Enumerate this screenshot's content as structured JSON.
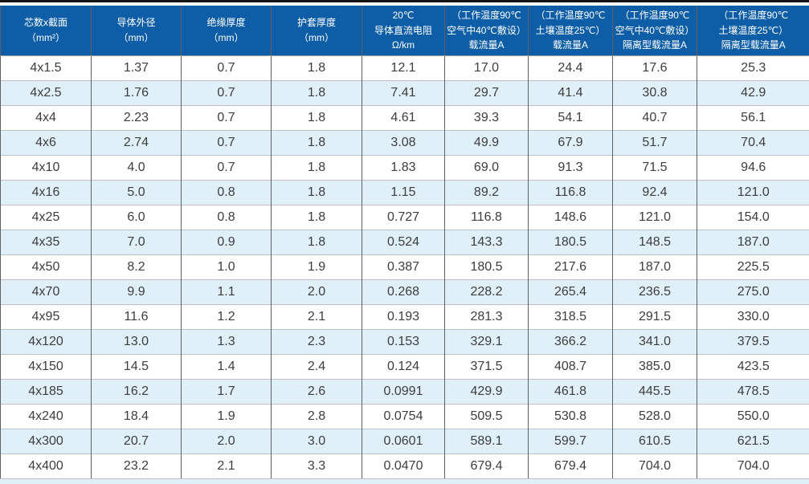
{
  "table": {
    "columns": [
      {
        "label": "芯数x截面\n（mm²）"
      },
      {
        "label": "导体外径\n（mm）"
      },
      {
        "label": "绝缘厚度\n（mm）"
      },
      {
        "label": "护套厚度\n（mm）"
      },
      {
        "label": "20℃\n导体直流电阻\nΩ/km"
      },
      {
        "label": "（工作温度90℃\n空气中40℃敷设）\n载流量A"
      },
      {
        "label": "（工作温度90℃\n土壤温度25℃）\n载流量A"
      },
      {
        "label": "（工作温度90℃\n空气中40℃敷设）\n隔离型载流量A"
      },
      {
        "label": "（工作温度90℃\n土壤温度25℃）\n隔离型载流量A"
      }
    ],
    "rows": [
      [
        "4x1.5",
        "1.37",
        "0.7",
        "1.8",
        "12.1",
        "17.0",
        "24.4",
        "17.6",
        "25.3"
      ],
      [
        "4x2.5",
        "1.76",
        "0.7",
        "1.8",
        "7.41",
        "29.7",
        "41.4",
        "30.8",
        "42.9"
      ],
      [
        "4x4",
        "2.23",
        "0.7",
        "1.8",
        "4.61",
        "39.3",
        "54.1",
        "40.7",
        "56.1"
      ],
      [
        "4x6",
        "2.74",
        "0.7",
        "1.8",
        "3.08",
        "49.9",
        "67.9",
        "51.7",
        "70.4"
      ],
      [
        "4x10",
        "4.0",
        "0.7",
        "1.8",
        "1.83",
        "69.0",
        "91.3",
        "71.5",
        "94.6"
      ],
      [
        "4x16",
        "5.0",
        "0.8",
        "1.8",
        "1.15",
        "89.2",
        "116.8",
        "92.4",
        "121.0"
      ],
      [
        "4x25",
        "6.0",
        "0.8",
        "1.8",
        "0.727",
        "116.8",
        "148.6",
        "121.0",
        "154.0"
      ],
      [
        "4x35",
        "7.0",
        "0.9",
        "1.8",
        "0.524",
        "143.3",
        "180.5",
        "148.5",
        "187.0"
      ],
      [
        "4x50",
        "8.2",
        "1.0",
        "1.9",
        "0.387",
        "180.5",
        "217.6",
        "187.0",
        "225.5"
      ],
      [
        "4x70",
        "9.9",
        "1.1",
        "2.0",
        "0.268",
        "228.2",
        "265.4",
        "236.5",
        "275.0"
      ],
      [
        "4x95",
        "11.6",
        "1.2",
        "2.1",
        "0.193",
        "281.3",
        "318.5",
        "291.5",
        "330.0"
      ],
      [
        "4x120",
        "13.0",
        "1.3",
        "2.3",
        "0.153",
        "329.1",
        "366.2",
        "341.0",
        "379.5"
      ],
      [
        "4x150",
        "14.5",
        "1.4",
        "2.4",
        "0.124",
        "371.5",
        "408.7",
        "385.0",
        "423.5"
      ],
      [
        "4x185",
        "16.2",
        "1.7",
        "2.6",
        "0.0991",
        "429.9",
        "461.8",
        "445.5",
        "478.5"
      ],
      [
        "4x240",
        "18.4",
        "1.9",
        "2.8",
        "0.0754",
        "509.5",
        "530.8",
        "528.0",
        "550.0"
      ],
      [
        "4x300",
        "20.7",
        "2.0",
        "3.0",
        "0.0601",
        "589.1",
        "599.7",
        "610.5",
        "621.5"
      ],
      [
        "4x400",
        "23.2",
        "2.1",
        "3.3",
        "0.0470",
        "679.4",
        "679.4",
        "704.0",
        "704.0"
      ]
    ]
  },
  "colors": {
    "header_bg": "#0e5ea7",
    "header_text": "#ffffff",
    "row_alt_bg": "#e0f0f9",
    "row_bg": "#ffffff",
    "body_text": "#3d3d3d",
    "vertical_border": "#5d6063",
    "horizontal_border": "#bdbec0",
    "top_bar": "#141414"
  }
}
